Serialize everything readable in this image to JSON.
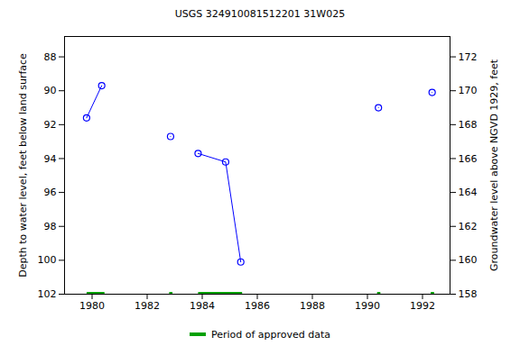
{
  "chart_data": {
    "type": "scatter",
    "title": "USGS 324910081512201 31W025",
    "y_label": "Depth to water level, feet below land surface",
    "y2_label": "Groundwater level above NGVD 1929, feet",
    "xlim": [
      1979,
      1993
    ],
    "xticks": [
      1980,
      1982,
      1984,
      1986,
      1988,
      1990,
      1992
    ],
    "ylim": [
      102,
      86.8
    ],
    "yticks": [
      88,
      90,
      92,
      94,
      96,
      98,
      100,
      102
    ],
    "y2lim": [
      158,
      173.2
    ],
    "y2ticks": [
      158,
      160,
      162,
      164,
      166,
      168,
      170,
      172
    ],
    "grid": false,
    "color": "#0000ff",
    "marker": "circle",
    "line_style": "solid",
    "series": [
      {
        "x": [
          1979.8,
          1980.35
        ],
        "values": [
          91.6,
          89.7
        ]
      },
      {
        "x": [
          1982.85
        ],
        "values": [
          92.7
        ]
      },
      {
        "x": [
          1983.85,
          1984.85,
          1985.4
        ],
        "values": [
          93.7,
          94.2,
          100.1
        ]
      },
      {
        "x": [
          1990.4
        ],
        "values": [
          91.0
        ]
      },
      {
        "x": [
          1992.35
        ],
        "values": [
          90.1
        ]
      }
    ],
    "approved_periods": {
      "name": "Period of approved data",
      "color": "#00a000",
      "ranges": [
        [
          1979.8,
          1980.45
        ],
        [
          1982.8,
          1982.92
        ],
        [
          1983.85,
          1985.45
        ],
        [
          1990.35,
          1990.47
        ],
        [
          1992.3,
          1992.42
        ]
      ]
    }
  }
}
